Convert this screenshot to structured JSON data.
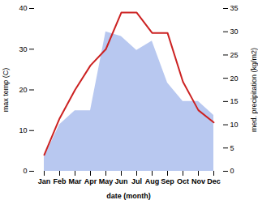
{
  "chart_data": {
    "type": "line",
    "categories": [
      "Jan",
      "Feb",
      "Mar",
      "Apr",
      "May",
      "Jun",
      "Jul",
      "Aug",
      "Sep",
      "Oct",
      "Nov",
      "Dec"
    ],
    "xlabel": "date (month)",
    "ylabel": "max temp (C)",
    "y2label": "med. precipitation (kg/m2)",
    "ylim": [
      0,
      40
    ],
    "yticks": [
      0,
      10,
      20,
      30,
      40
    ],
    "y2lim": [
      0,
      35
    ],
    "y2ticks": [
      0,
      5,
      10,
      15,
      20,
      25,
      30,
      35
    ],
    "series": [
      {
        "type": "area",
        "axis": "y2",
        "color": "#b8c8f0",
        "values": [
          3,
          10,
          13,
          13,
          30,
          29,
          26,
          28,
          19,
          15,
          15,
          12
        ]
      },
      {
        "type": "line",
        "color": "#cc2222",
        "values": [
          4,
          13,
          20,
          26,
          30,
          39,
          39,
          34,
          34,
          22,
          15,
          12
        ]
      }
    ]
  }
}
